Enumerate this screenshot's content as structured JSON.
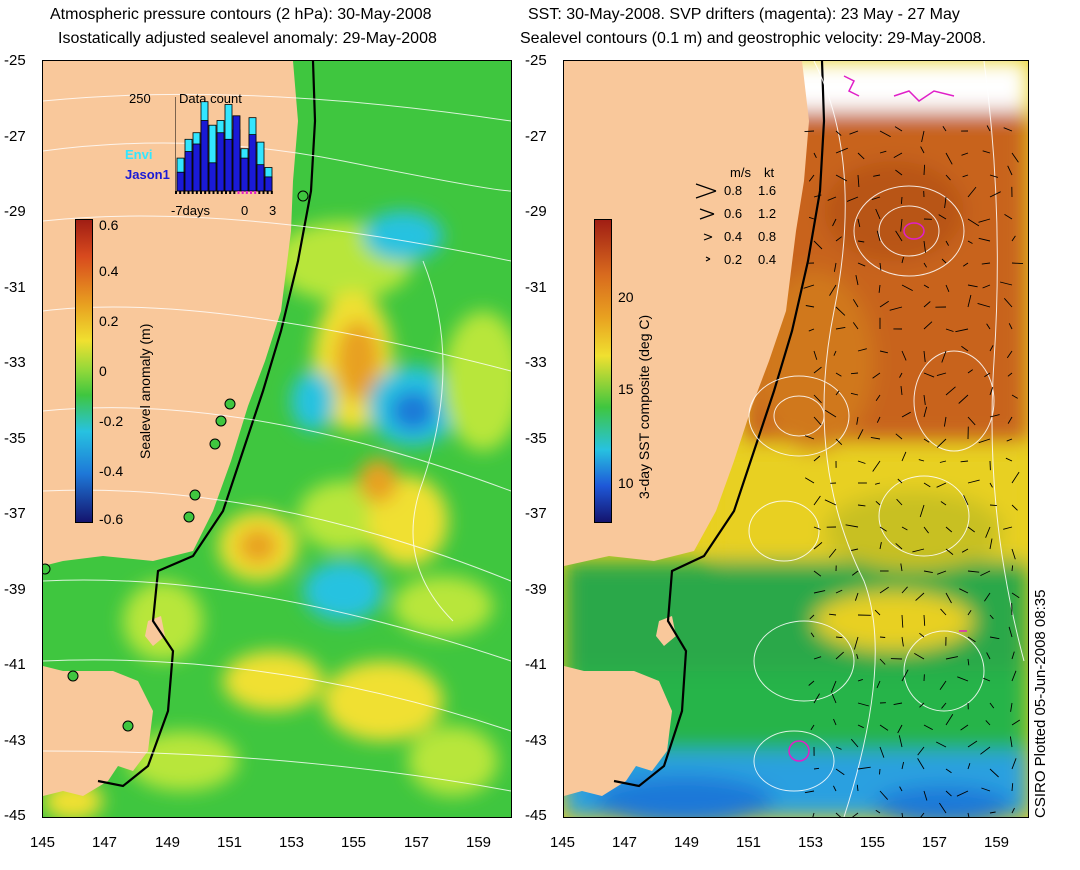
{
  "left_panel": {
    "title_line1": "Atmospheric pressure contours (2 hPa): 30-May-2008",
    "title_line2": "Isostatically adjusted sealevel anomaly: 29-May-2008",
    "colorbar": {
      "label": "Sealevel anomaly (m)",
      "ticks": [
        "0.6",
        "0.4",
        "0.2",
        "0",
        "-0.2",
        "-0.4",
        "-0.6"
      ]
    },
    "inset": {
      "count_max": "250",
      "title": "Data count",
      "series": [
        {
          "name": "Envi",
          "color": "#33e6ff"
        },
        {
          "name": "Jason1",
          "color": "#1a1ad6"
        }
      ],
      "x_labels": [
        "-7days",
        "0",
        "3"
      ],
      "bars_envi": [
        0.35,
        0.55,
        0.62,
        0.95,
        0.7,
        0.75,
        0.92,
        0.65,
        0.45,
        0.78,
        0.52,
        0.25
      ],
      "bars_jason1": [
        0.2,
        0.42,
        0.5,
        0.75,
        0.3,
        0.62,
        0.55,
        0.8,
        0.35,
        0.6,
        0.28,
        0.15
      ]
    }
  },
  "right_panel": {
    "title_line1": "SST: 30-May-2008. SVP drifters (magenta): 23 May - 27 May",
    "title_line2": "Sealevel contours (0.1 m) and geostrophic velocity: 29-May-2008.",
    "colorbar": {
      "label": "3-day SST composite (deg C)",
      "ticks": [
        "20",
        "15",
        "10"
      ]
    },
    "velocity_legend": {
      "header_ms": "m/s",
      "header_kt": "kt",
      "rows": [
        {
          "ms": "0.8",
          "kt": "1.6"
        },
        {
          "ms": "0.6",
          "kt": "1.2"
        },
        {
          "ms": "0.4",
          "kt": "0.8"
        },
        {
          "ms": "0.2",
          "kt": "0.4"
        }
      ]
    },
    "credit": "CSIRO Plotted 05-Jun-2008 08:35"
  },
  "axes": {
    "lat_ticks": [
      "-25",
      "-27",
      "-29",
      "-31",
      "-33",
      "-35",
      "-37",
      "-39",
      "-41",
      "-43",
      "-45"
    ],
    "lon_ticks": [
      "145",
      "147",
      "149",
      "151",
      "153",
      "155",
      "157",
      "159"
    ]
  },
  "colors": {
    "land": "#f9c89b",
    "ocean_green": "#3fc63f",
    "ocean_light": "#b8e63a",
    "ocean_yellow": "#f0e030",
    "ocean_orange": "#e8a020",
    "low_cyan": "#27c2e0",
    "low_blue": "#1e78d8",
    "sst_warm": "#c8641e",
    "sst_mid": "#e8d020",
    "sst_cool": "#2aa84a",
    "sst_cold": "#2aa0e0"
  }
}
